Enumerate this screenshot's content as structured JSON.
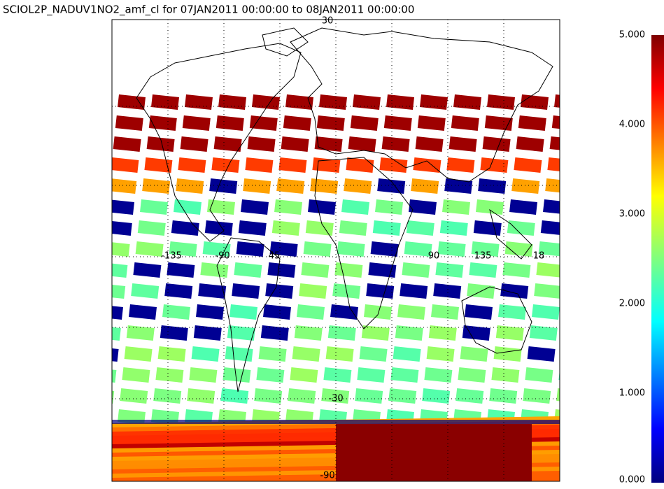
{
  "chart_data": {
    "type": "map",
    "title": "SCIOL2P_NADUV1NO2_amf_cl for 07JAN2011 00:00:00 to 08JAN2011 00:00:00",
    "colorbar": {
      "lim": [
        0,
        5
      ],
      "ticks": [
        {
          "value": 0,
          "label": "0.000"
        },
        {
          "value": 1,
          "label": "1.000"
        },
        {
          "value": 2,
          "label": "2.000"
        },
        {
          "value": 3,
          "label": "3.000"
        },
        {
          "value": 4,
          "label": "4.000"
        },
        {
          "value": 5,
          "label": "5.000"
        }
      ]
    },
    "lat_labels": [
      "30",
      "-30",
      "-90"
    ],
    "lon_labels": [
      "-135",
      "-90",
      "45",
      "90",
      "135",
      "18"
    ],
    "grid": true
  }
}
